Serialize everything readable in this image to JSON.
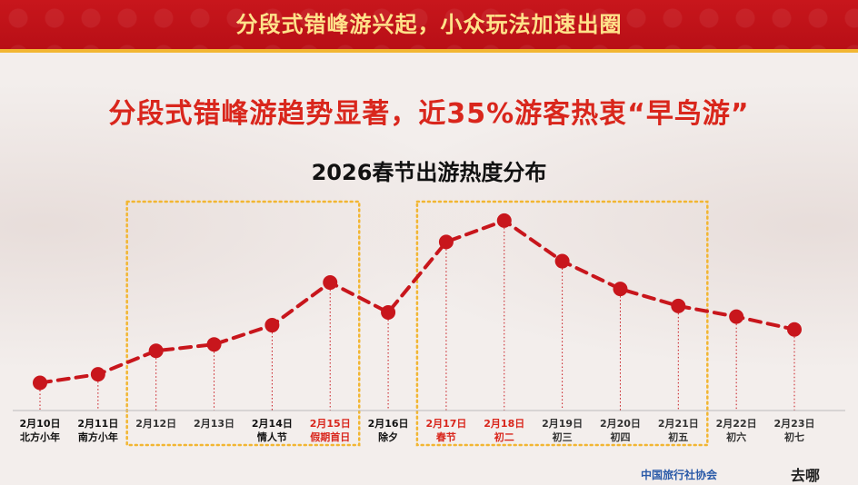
{
  "banner": {
    "title": "分段式错峰游兴起，小众玩法加速出圈"
  },
  "headline": "分段式错峰游趋势显著，近35%游客热衷“早鸟游”",
  "chart_data": {
    "type": "line",
    "title": "2026春节出游热度分布",
    "xlabel": "",
    "ylabel": "",
    "grid": false,
    "legend": "none",
    "categories": [
      {
        "date": "2月10日",
        "note": "北方小年",
        "bold": true,
        "color": "#111111"
      },
      {
        "date": "2月11日",
        "note": "南方小年",
        "bold": true,
        "color": "#111111"
      },
      {
        "date": "2月12日",
        "note": "",
        "bold": false,
        "color": "#333333"
      },
      {
        "date": "2月13日",
        "note": "",
        "bold": false,
        "color": "#333333"
      },
      {
        "date": "2月14日",
        "note": "情人节",
        "bold": true,
        "color": "#111111"
      },
      {
        "date": "2月15日",
        "note": "假期首日",
        "bold": true,
        "color": "#d9261c"
      },
      {
        "date": "2月16日",
        "note": "除夕",
        "bold": true,
        "color": "#111111"
      },
      {
        "date": "2月17日",
        "note": "春节",
        "bold": true,
        "color": "#d9261c"
      },
      {
        "date": "2月18日",
        "note": "初二",
        "bold": true,
        "color": "#d9261c"
      },
      {
        "date": "2月19日",
        "note": "初三",
        "bold": false,
        "color": "#333333"
      },
      {
        "date": "2月20日",
        "note": "初四",
        "bold": false,
        "color": "#333333"
      },
      {
        "date": "2月21日",
        "note": "初五",
        "bold": false,
        "color": "#333333"
      },
      {
        "date": "2月22日",
        "note": "初六",
        "bold": false,
        "color": "#333333"
      },
      {
        "date": "2月23日",
        "note": "初七",
        "bold": false,
        "color": "#333333"
      }
    ],
    "values": [
      10,
      14,
      25,
      28,
      37,
      57,
      43,
      76,
      86,
      67,
      54,
      46,
      41,
      35
    ],
    "ylim": [
      0,
      100
    ],
    "series_color": "#c8161c",
    "highlight_ranges": [
      [
        2,
        5
      ],
      [
        7,
        11
      ]
    ],
    "highlight_color": "#f2b632"
  },
  "footer": {
    "org": "中国旅行社协会",
    "brand": "去哪"
  }
}
